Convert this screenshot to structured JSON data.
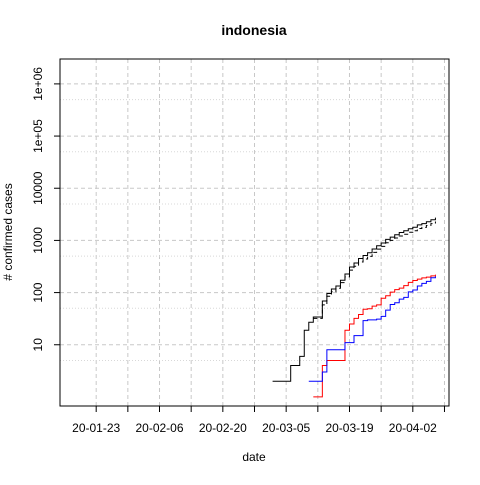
{
  "chart_data": {
    "type": "line",
    "title": "indonesia",
    "xlabel": "date",
    "ylabel": "# confirmed cases",
    "x_scale": "date",
    "y_scale": "log",
    "xlim": [
      "2020-01-15",
      "2020-04-10"
    ],
    "ylim": [
      0.67,
      3000000
    ],
    "grid": true,
    "x_ticks": [
      {
        "date": "2020-01-23",
        "label": "20-01-23"
      },
      {
        "date": "2020-02-06",
        "label": "20-02-06"
      },
      {
        "date": "2020-02-20",
        "label": "20-02-20"
      },
      {
        "date": "2020-03-05",
        "label": "20-03-05"
      },
      {
        "date": "2020-03-19",
        "label": "20-03-19"
      },
      {
        "date": "2020-04-02",
        "label": "20-04-02"
      }
    ],
    "x_minor_ticks": [
      "2020-01-30",
      "2020-02-13",
      "2020-02-27",
      "2020-03-12",
      "2020-03-26",
      "2020-04-09"
    ],
    "y_ticks": [
      {
        "value": 10,
        "label": "10"
      },
      {
        "value": 100,
        "label": "100"
      },
      {
        "value": 1000,
        "label": "1000"
      },
      {
        "value": 10000,
        "label": "10000"
      },
      {
        "value": 100000,
        "label": "1e+05"
      },
      {
        "value": 1000000,
        "label": "1e+06"
      }
    ],
    "y_minor_grid": [
      5,
      50,
      500,
      5000,
      50000,
      500000
    ],
    "series": [
      {
        "color": "#000000",
        "dash": "solid",
        "points": [
          [
            "2020-03-02",
            2
          ],
          [
            "2020-03-05",
            2
          ],
          [
            "2020-03-06",
            4
          ],
          [
            "2020-03-07",
            4
          ],
          [
            "2020-03-08",
            6
          ],
          [
            "2020-03-09",
            19
          ],
          [
            "2020-03-10",
            27
          ],
          [
            "2020-03-11",
            34
          ],
          [
            "2020-03-12",
            34
          ],
          [
            "2020-03-13",
            69
          ],
          [
            "2020-03-14",
            96
          ],
          [
            "2020-03-15",
            117
          ],
          [
            "2020-03-16",
            134
          ],
          [
            "2020-03-17",
            172
          ],
          [
            "2020-03-18",
            227
          ],
          [
            "2020-03-19",
            309
          ],
          [
            "2020-03-20",
            369
          ],
          [
            "2020-03-21",
            450
          ],
          [
            "2020-03-22",
            514
          ],
          [
            "2020-03-23",
            579
          ],
          [
            "2020-03-24",
            686
          ],
          [
            "2020-03-25",
            790
          ],
          [
            "2020-03-26",
            893
          ],
          [
            "2020-03-27",
            1046
          ],
          [
            "2020-03-28",
            1155
          ],
          [
            "2020-03-29",
            1285
          ],
          [
            "2020-03-30",
            1414
          ],
          [
            "2020-03-31",
            1528
          ],
          [
            "2020-04-01",
            1677
          ],
          [
            "2020-04-02",
            1790
          ],
          [
            "2020-04-03",
            1986
          ],
          [
            "2020-04-04",
            2092
          ],
          [
            "2020-04-05",
            2273
          ],
          [
            "2020-04-06",
            2491
          ],
          [
            "2020-04-07",
            2738
          ]
        ]
      },
      {
        "color": "#000000",
        "dash": "dashed",
        "points": [
          [
            "2020-03-11",
            32
          ],
          [
            "2020-03-12",
            32
          ],
          [
            "2020-03-13",
            58
          ],
          [
            "2020-03-14",
            85
          ],
          [
            "2020-03-15",
            104
          ],
          [
            "2020-03-16",
            121
          ],
          [
            "2020-03-17",
            155
          ],
          [
            "2020-03-18",
            200
          ],
          [
            "2020-03-19",
            270
          ],
          [
            "2020-03-20",
            320
          ],
          [
            "2020-03-21",
            385
          ],
          [
            "2020-03-22",
            440
          ],
          [
            "2020-03-23",
            495
          ],
          [
            "2020-03-24",
            590
          ],
          [
            "2020-03-25",
            680
          ],
          [
            "2020-03-26",
            770
          ],
          [
            "2020-03-27",
            900
          ],
          [
            "2020-03-28",
            1000
          ],
          [
            "2020-03-29",
            1110
          ],
          [
            "2020-03-30",
            1215
          ],
          [
            "2020-03-31",
            1310
          ],
          [
            "2020-04-01",
            1430
          ],
          [
            "2020-04-02",
            1530
          ],
          [
            "2020-04-03",
            1690
          ],
          [
            "2020-04-04",
            1780
          ],
          [
            "2020-04-05",
            1930
          ],
          [
            "2020-04-06",
            2100
          ],
          [
            "2020-04-07",
            2310
          ]
        ]
      },
      {
        "color": "#ff0000",
        "dash": "solid",
        "points": [
          [
            "2020-03-11",
            1
          ],
          [
            "2020-03-12",
            1
          ],
          [
            "2020-03-13",
            4
          ],
          [
            "2020-03-14",
            5
          ],
          [
            "2020-03-15",
            5
          ],
          [
            "2020-03-16",
            5
          ],
          [
            "2020-03-17",
            5
          ],
          [
            "2020-03-18",
            19
          ],
          [
            "2020-03-19",
            25
          ],
          [
            "2020-03-20",
            32
          ],
          [
            "2020-03-21",
            38
          ],
          [
            "2020-03-22",
            48
          ],
          [
            "2020-03-23",
            49
          ],
          [
            "2020-03-24",
            55
          ],
          [
            "2020-03-25",
            58
          ],
          [
            "2020-03-26",
            78
          ],
          [
            "2020-03-27",
            87
          ],
          [
            "2020-03-28",
            102
          ],
          [
            "2020-03-29",
            114
          ],
          [
            "2020-03-30",
            122
          ],
          [
            "2020-03-31",
            136
          ],
          [
            "2020-04-01",
            157
          ],
          [
            "2020-04-02",
            170
          ],
          [
            "2020-04-03",
            181
          ],
          [
            "2020-04-04",
            191
          ],
          [
            "2020-04-05",
            198
          ],
          [
            "2020-04-06",
            209
          ],
          [
            "2020-04-07",
            221
          ]
        ]
      },
      {
        "color": "#0000ff",
        "dash": "solid",
        "points": [
          [
            "2020-03-10",
            2
          ],
          [
            "2020-03-11",
            2
          ],
          [
            "2020-03-12",
            2
          ],
          [
            "2020-03-13",
            3
          ],
          [
            "2020-03-14",
            8
          ],
          [
            "2020-03-15",
            8
          ],
          [
            "2020-03-16",
            8
          ],
          [
            "2020-03-17",
            8
          ],
          [
            "2020-03-18",
            11
          ],
          [
            "2020-03-19",
            11
          ],
          [
            "2020-03-20",
            15
          ],
          [
            "2020-03-21",
            15
          ],
          [
            "2020-03-22",
            29
          ],
          [
            "2020-03-23",
            30
          ],
          [
            "2020-03-24",
            30
          ],
          [
            "2020-03-25",
            31
          ],
          [
            "2020-03-26",
            35
          ],
          [
            "2020-03-27",
            46
          ],
          [
            "2020-03-28",
            59
          ],
          [
            "2020-03-29",
            64
          ],
          [
            "2020-03-30",
            75
          ],
          [
            "2020-03-31",
            81
          ],
          [
            "2020-04-01",
            103
          ],
          [
            "2020-04-02",
            112
          ],
          [
            "2020-04-03",
            134
          ],
          [
            "2020-04-04",
            150
          ],
          [
            "2020-04-05",
            164
          ],
          [
            "2020-04-06",
            192
          ],
          [
            "2020-04-07",
            204
          ]
        ]
      }
    ]
  }
}
